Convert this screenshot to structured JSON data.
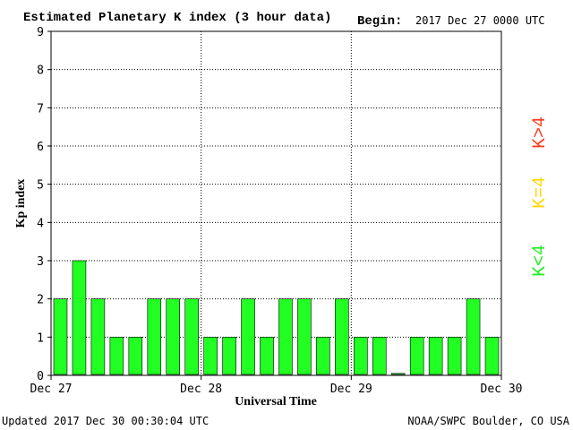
{
  "header": {
    "title": "Estimated Planetary K index (3 hour data)",
    "begin_label": "Begin:",
    "begin_value": "2017 Dec 27 0000 UTC"
  },
  "footer": {
    "updated": "Updated 2017 Dec 30 00:30:04 UTC",
    "source": "NOAA/SWPC Boulder, CO USA"
  },
  "legend": {
    "high": {
      "label": "K>4",
      "color": "#ff3b1f"
    },
    "mid": {
      "label": "K=4",
      "color": "#ffd700"
    },
    "low": {
      "label": "K<4",
      "color": "#22ee22"
    }
  },
  "chart_data": {
    "type": "bar",
    "title": "Estimated Planetary K index (3 hour data)",
    "xlabel": "Universal Time",
    "ylabel": "Kp index",
    "ylim": [
      0,
      9
    ],
    "yticks": [
      0,
      1,
      2,
      3,
      4,
      5,
      6,
      7,
      8,
      9
    ],
    "xtick_labels": [
      "Dec 27",
      "Dec 28",
      "Dec 29",
      "Dec 30"
    ],
    "grid": true,
    "bar_color": "#22ff22",
    "values": [
      2,
      3,
      2,
      1,
      1,
      2,
      2,
      2,
      1,
      1,
      2,
      1,
      2,
      2,
      1,
      2,
      1,
      1,
      0.05,
      1,
      1,
      1,
      2,
      1
    ]
  }
}
